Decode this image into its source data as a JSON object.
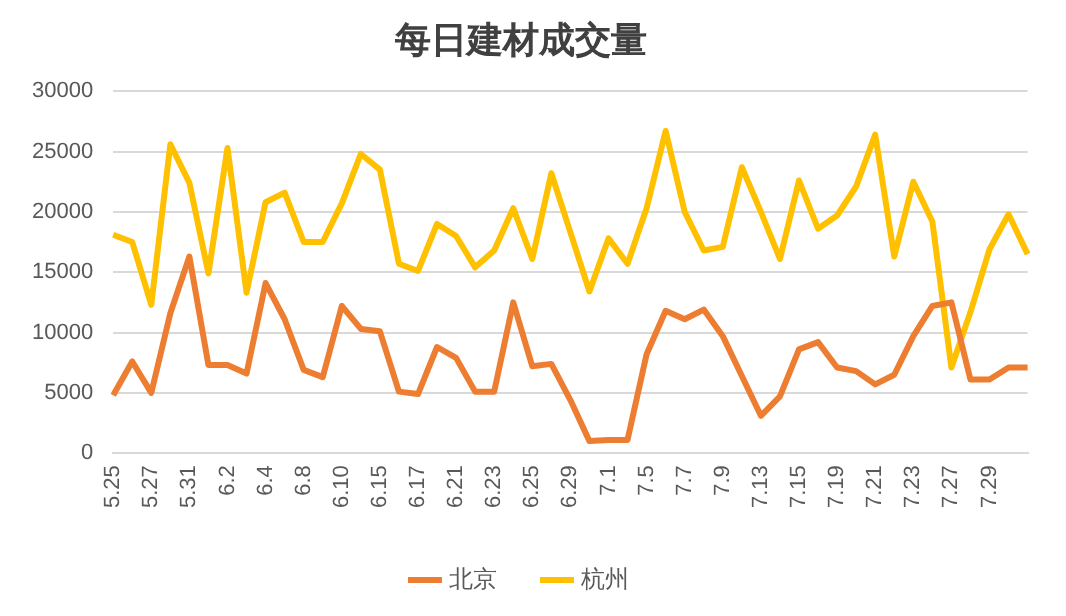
{
  "chart_data": {
    "type": "line",
    "title": "每日建材成交量",
    "categories": [
      "5.25",
      null,
      "5.27",
      null,
      "5.31",
      null,
      "6.2",
      null,
      "6.4",
      null,
      "6.8",
      null,
      "6.10",
      null,
      "6.15",
      null,
      "6.17",
      null,
      "6.21",
      null,
      "6.23",
      null,
      "6.25",
      null,
      "6.29",
      null,
      "7.1",
      null,
      "7.5",
      null,
      "7.7",
      null,
      "7.9",
      null,
      "7.13",
      null,
      "7.15",
      null,
      "7.19",
      null,
      "7.21",
      null,
      "7.23",
      null,
      "7.27",
      null,
      "7.29",
      null,
      null
    ],
    "series": [
      {
        "name": "北京",
        "color": "#ed7d31",
        "values": [
          4800,
          7600,
          5000,
          11600,
          16300,
          7300,
          7300,
          6600,
          14100,
          11100,
          6900,
          6300,
          12200,
          10300,
          10100,
          5100,
          4900,
          8800,
          7900,
          5100,
          5100,
          12500,
          7200,
          7400,
          4400,
          1000,
          1100,
          1100,
          8200,
          11800,
          11100,
          11900,
          9700,
          6400,
          3100,
          4700,
          8600,
          9200,
          7100,
          6800,
          5700,
          6500,
          9700,
          12200,
          12500,
          6100,
          6100,
          7100,
          7100
        ]
      },
      {
        "name": "杭州",
        "color": "#ffc000",
        "values": [
          18100,
          17500,
          12300,
          25600,
          22400,
          14900,
          25300,
          13300,
          20800,
          21600,
          17500,
          17500,
          20700,
          24800,
          23500,
          15700,
          15100,
          19000,
          18000,
          15400,
          16800,
          20300,
          16100,
          23200,
          18300,
          13400,
          17800,
          15700,
          20300,
          26700,
          20000,
          16800,
          17100,
          23700,
          20000,
          16100,
          22600,
          18600,
          19700,
          22100,
          26400,
          16300,
          22500,
          19200,
          7100,
          11700,
          16900,
          19800,
          16500
        ]
      }
    ],
    "ylim": [
      0,
      30000
    ],
    "yticks": [
      0,
      5000,
      10000,
      15000,
      20000,
      25000,
      30000
    ],
    "grid": "y",
    "legend": "bottom",
    "marker": "none",
    "line_style": "solid"
  }
}
